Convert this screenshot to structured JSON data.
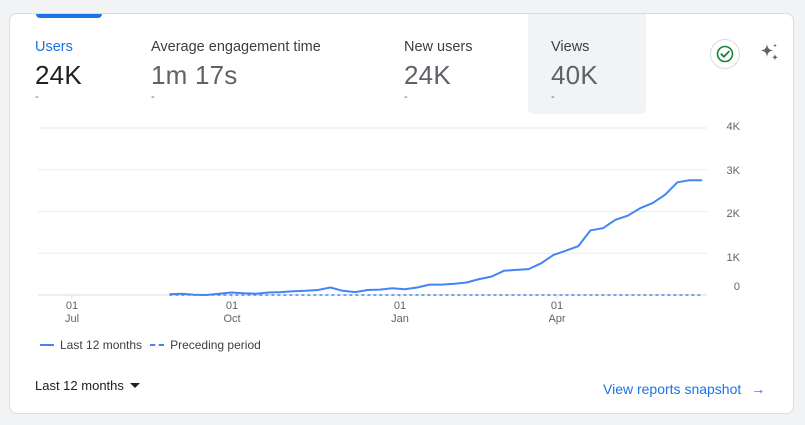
{
  "metrics": [
    {
      "key": "users",
      "label": "Users",
      "value": "24K",
      "delta": "-"
    },
    {
      "key": "engagement",
      "label": "Average engagement time",
      "value": "1m 17s",
      "delta": "-"
    },
    {
      "key": "new_users",
      "label": "New users",
      "value": "24K",
      "delta": "-"
    },
    {
      "key": "views",
      "label": "Views",
      "value": "40K",
      "delta": "-"
    }
  ],
  "icons": {
    "status": "check-circle-icon",
    "insights": "sparkle-icon"
  },
  "colors": {
    "accent": "#1a73e8",
    "series": "#4285f4",
    "status_green": "#188038"
  },
  "chart_data": {
    "type": "line",
    "x_ticks": [
      {
        "day": "01",
        "month": "Jul"
      },
      {
        "day": "01",
        "month": "Oct"
      },
      {
        "day": "01",
        "month": "Jan"
      },
      {
        "day": "01",
        "month": "Apr"
      }
    ],
    "y_ticks": [
      "4K",
      "3K",
      "2K",
      "1K",
      "0"
    ],
    "ylim": [
      0,
      4000
    ],
    "grid": true,
    "legend_position": "bottom-left",
    "series": [
      {
        "name": "Last 12 months",
        "style": "solid",
        "x": [
          "2024-08-25",
          "2024-09-01",
          "2024-09-08",
          "2024-09-15",
          "2024-09-22",
          "2024-09-29",
          "2024-10-06",
          "2024-10-13",
          "2024-10-20",
          "2024-10-27",
          "2024-11-03",
          "2024-11-10",
          "2024-11-17",
          "2024-11-24",
          "2024-12-01",
          "2024-12-08",
          "2024-12-15",
          "2024-12-22",
          "2024-12-29",
          "2025-01-05",
          "2025-01-12",
          "2025-01-19",
          "2025-01-26",
          "2025-02-02",
          "2025-02-09",
          "2025-02-16",
          "2025-02-23",
          "2025-03-02",
          "2025-03-09",
          "2025-03-16",
          "2025-03-23",
          "2025-03-30",
          "2025-04-06",
          "2025-04-13",
          "2025-04-20",
          "2025-04-27",
          "2025-05-04",
          "2025-05-11",
          "2025-05-18",
          "2025-05-25",
          "2025-06-01",
          "2025-06-08",
          "2025-06-15",
          "2025-06-22"
        ],
        "values": [
          20,
          30,
          5,
          0,
          30,
          60,
          40,
          30,
          60,
          70,
          90,
          100,
          120,
          180,
          100,
          70,
          120,
          130,
          160,
          140,
          180,
          250,
          250,
          270,
          300,
          380,
          440,
          580,
          600,
          620,
          760,
          960,
          1060,
          1170,
          1550,
          1600,
          1800,
          1900,
          2080,
          2200,
          2400,
          2700,
          2750,
          2750
        ]
      },
      {
        "name": "Preceding period",
        "style": "dashed",
        "x": [
          "2024-08-25",
          "2025-06-22"
        ],
        "values": [
          0,
          0
        ]
      }
    ]
  },
  "footer": {
    "range_label": "Last 12 months",
    "snapshot_link": "View reports snapshot",
    "arrow": "→"
  }
}
